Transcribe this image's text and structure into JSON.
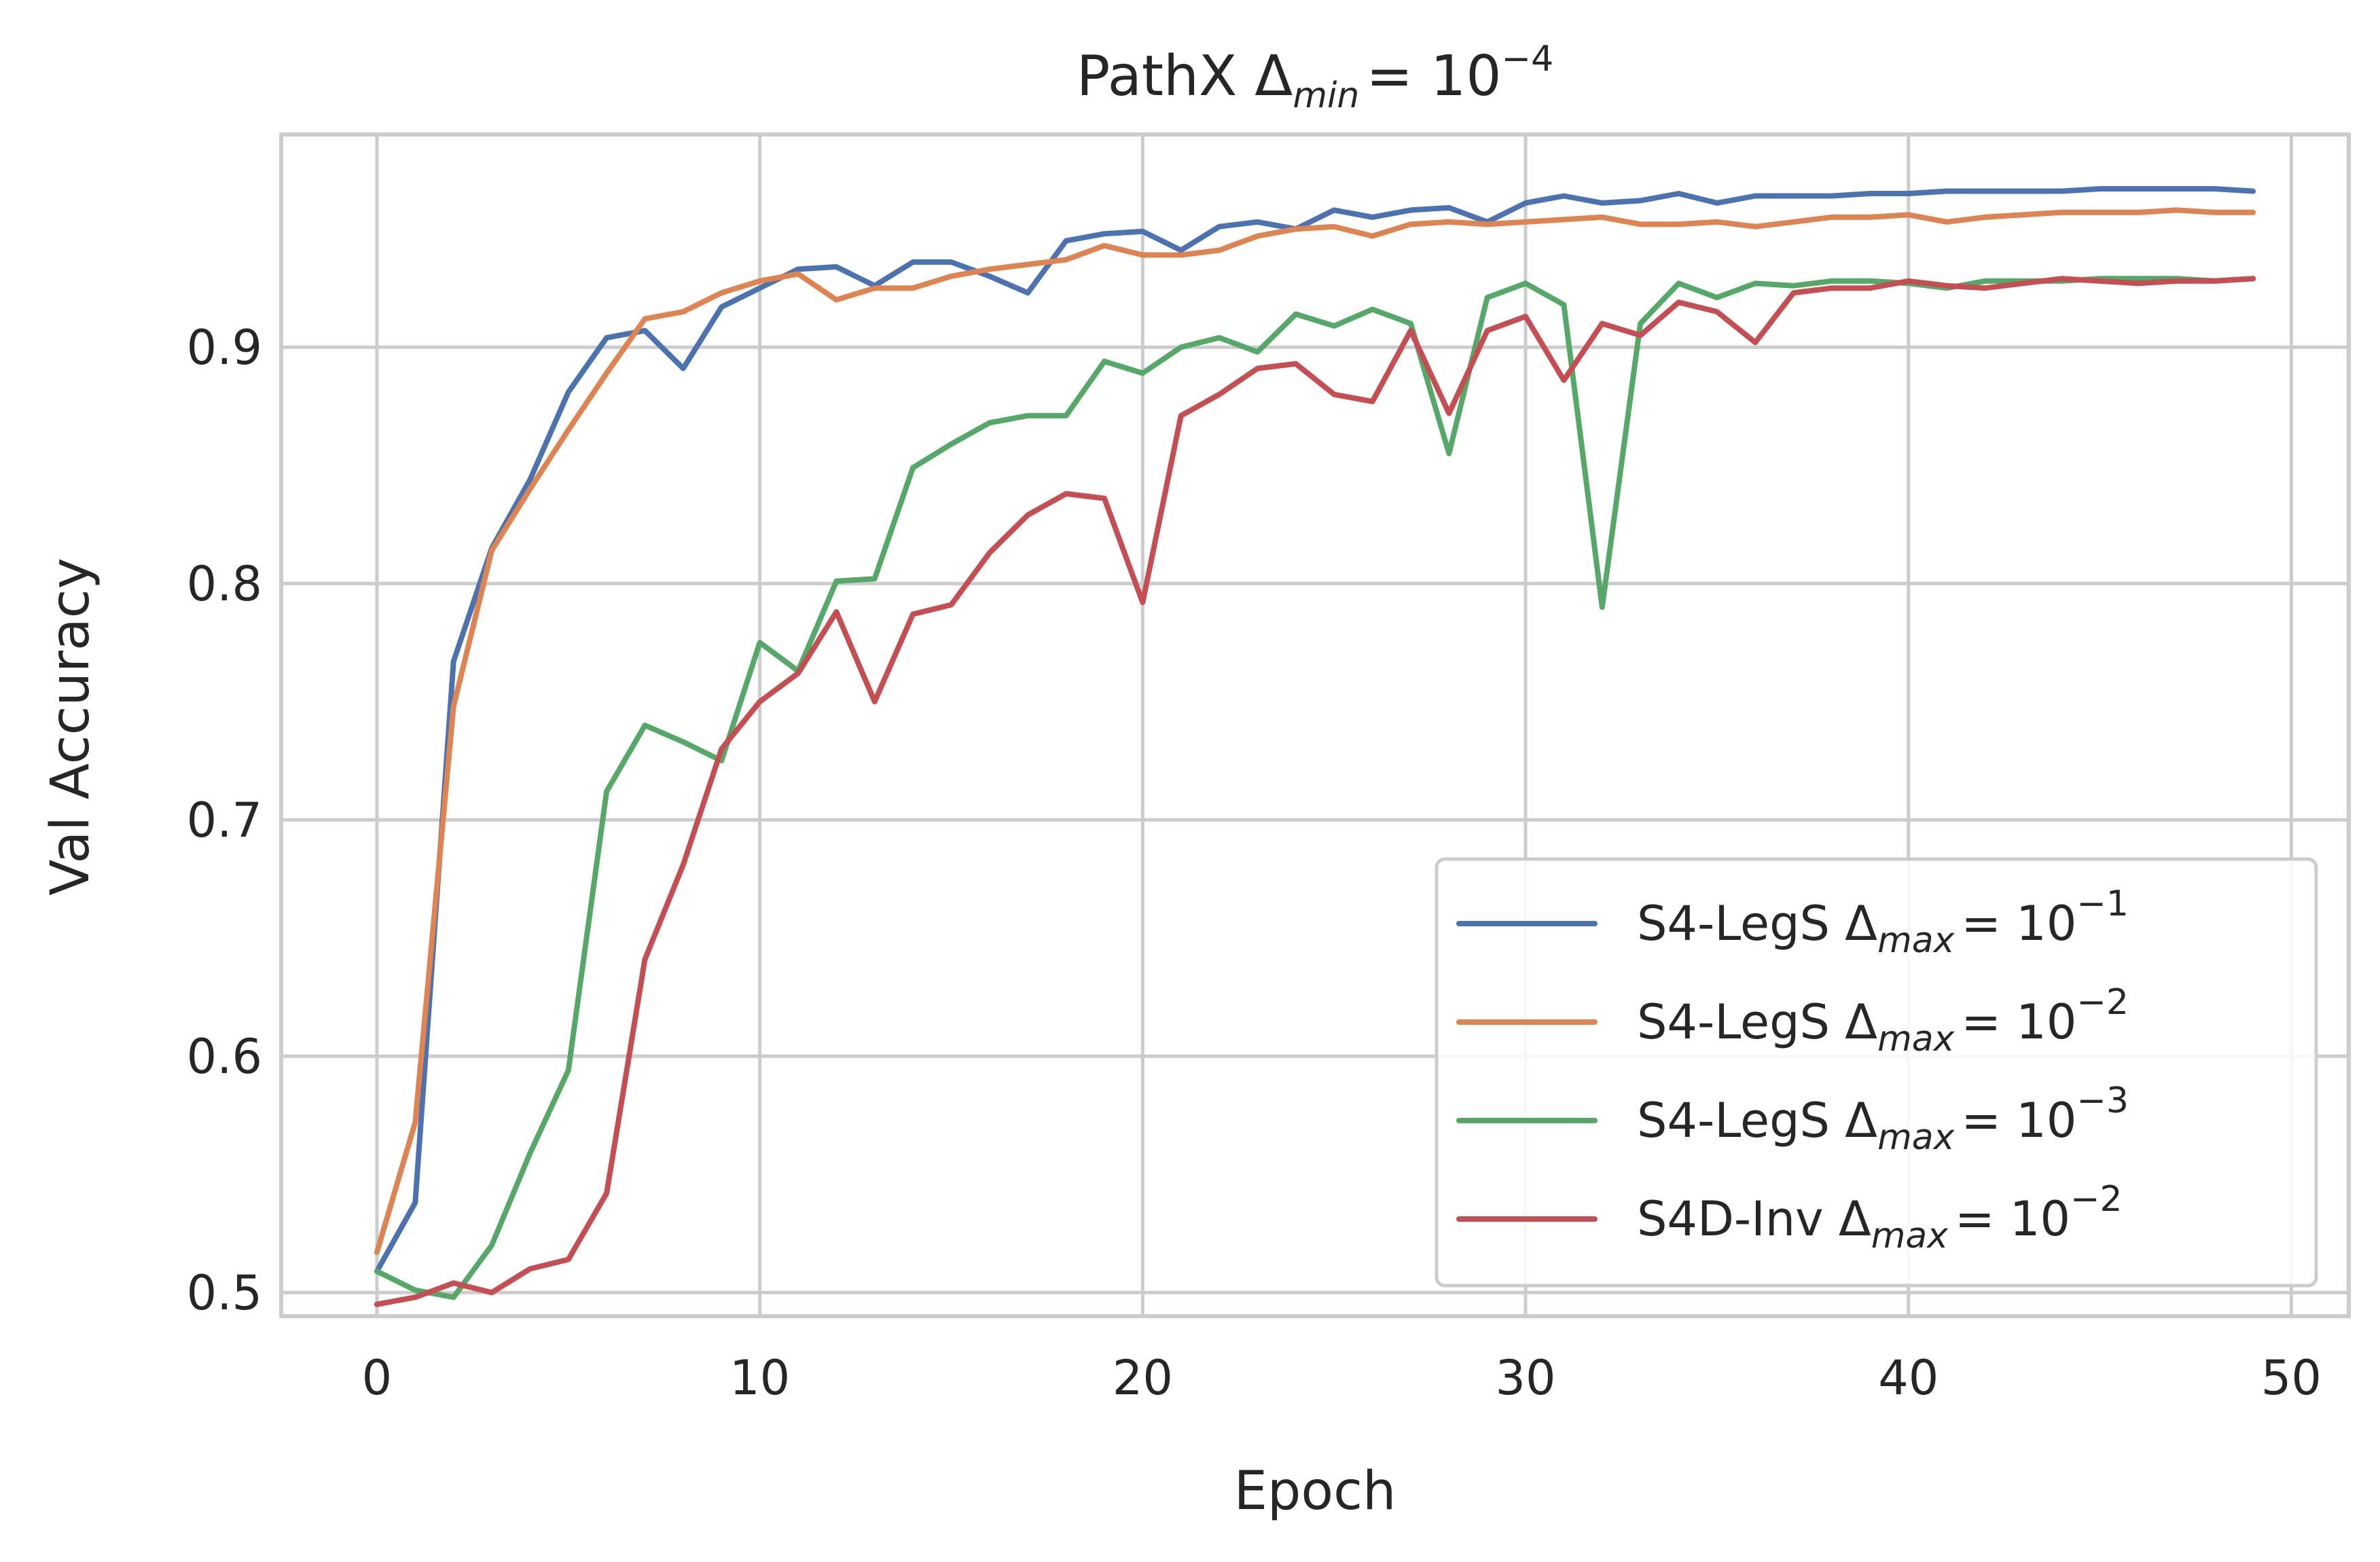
{
  "chart_data": {
    "type": "line",
    "title": {
      "prefix": "PathX Δ",
      "sub": "min",
      "mid": "= 10",
      "sup": "−4"
    },
    "xlabel": "Epoch",
    "ylabel": "Val Accuracy",
    "xlim": [
      -2.5,
      51.5
    ],
    "ylim": [
      0.49,
      0.99
    ],
    "xticks": [
      0,
      10,
      20,
      30,
      40,
      50
    ],
    "yticks": [
      0.5,
      0.6,
      0.7,
      0.8,
      0.9
    ],
    "xtick_labels": [
      "0",
      "10",
      "20",
      "30",
      "40",
      "50"
    ],
    "ytick_labels": [
      "0.5",
      "0.6",
      "0.7",
      "0.8",
      "0.9"
    ],
    "grid": true,
    "legend_position": "lower-right",
    "x": [
      0,
      1,
      2,
      3,
      4,
      5,
      6,
      7,
      8,
      9,
      10,
      11,
      12,
      13,
      14,
      15,
      16,
      17,
      18,
      19,
      20,
      21,
      22,
      23,
      24,
      25,
      26,
      27,
      28,
      29,
      30,
      31,
      32,
      33,
      34,
      35,
      36,
      37,
      38,
      39,
      40,
      41,
      42,
      43,
      44,
      45,
      46,
      47,
      48,
      49
    ],
    "series": [
      {
        "label_parts": {
          "name": "S4-LegS  Δ",
          "sub": "max",
          "mid": "= 10",
          "sup": "−1"
        },
        "color": "#4c72b0",
        "values": [
          0.509,
          0.538,
          0.767,
          0.815,
          0.844,
          0.881,
          0.904,
          0.907,
          0.891,
          0.917,
          0.925,
          0.933,
          0.934,
          0.926,
          0.936,
          0.936,
          0.93,
          0.923,
          0.945,
          0.948,
          0.949,
          0.941,
          0.951,
          0.953,
          0.95,
          0.958,
          0.955,
          0.958,
          0.959,
          0.953,
          0.961,
          0.964,
          0.961,
          0.962,
          0.965,
          0.961,
          0.964,
          0.964,
          0.964,
          0.965,
          0.965,
          0.966,
          0.966,
          0.966,
          0.966,
          0.967,
          0.967,
          0.967,
          0.967,
          0.966
        ]
      },
      {
        "label_parts": {
          "name": "S4-LegS  Δ",
          "sub": "max",
          "mid": "= 10",
          "sup": "−2"
        },
        "color": "#dd8452",
        "values": [
          0.517,
          0.572,
          0.748,
          0.814,
          0.84,
          0.865,
          0.889,
          0.912,
          0.915,
          0.923,
          0.928,
          0.931,
          0.92,
          0.925,
          0.925,
          0.93,
          0.933,
          0.935,
          0.937,
          0.943,
          0.939,
          0.939,
          0.941,
          0.947,
          0.95,
          0.951,
          0.947,
          0.952,
          0.953,
          0.952,
          0.953,
          0.954,
          0.955,
          0.952,
          0.952,
          0.953,
          0.951,
          0.953,
          0.955,
          0.955,
          0.956,
          0.953,
          0.955,
          0.956,
          0.957,
          0.957,
          0.957,
          0.958,
          0.957,
          0.957
        ]
      },
      {
        "label_parts": {
          "name": "S4-LegS  Δ",
          "sub": "max",
          "mid": "= 10",
          "sup": "−3"
        },
        "color": "#55a868",
        "values": [
          0.509,
          0.501,
          0.498,
          0.52,
          0.559,
          0.594,
          0.712,
          0.74,
          0.733,
          0.725,
          0.775,
          0.763,
          0.801,
          0.802,
          0.849,
          0.859,
          0.868,
          0.871,
          0.871,
          0.894,
          0.889,
          0.9,
          0.904,
          0.898,
          0.914,
          0.909,
          0.916,
          0.91,
          0.855,
          0.921,
          0.927,
          0.918,
          0.79,
          0.91,
          0.927,
          0.921,
          0.927,
          0.926,
          0.928,
          0.928,
          0.927,
          0.925,
          0.928,
          0.928,
          0.928,
          0.929,
          0.929,
          0.929,
          0.928,
          0.929
        ]
      },
      {
        "label_parts": {
          "name": "S4D-Inv  Δ",
          "sub": "max",
          "mid": "= 10",
          "sup": "−2"
        },
        "color": "#c44e52",
        "values": [
          0.495,
          0.498,
          0.504,
          0.5,
          0.51,
          0.514,
          0.542,
          0.641,
          0.681,
          0.73,
          0.75,
          0.762,
          0.788,
          0.75,
          0.787,
          0.791,
          0.813,
          0.829,
          0.838,
          0.836,
          0.792,
          0.871,
          0.88,
          0.891,
          0.893,
          0.88,
          0.877,
          0.907,
          0.872,
          0.907,
          0.913,
          0.886,
          0.91,
          0.905,
          0.919,
          0.915,
          0.902,
          0.923,
          0.925,
          0.925,
          0.928,
          0.926,
          0.925,
          0.927,
          0.929,
          0.928,
          0.927,
          0.928,
          0.928,
          0.929
        ]
      }
    ]
  }
}
